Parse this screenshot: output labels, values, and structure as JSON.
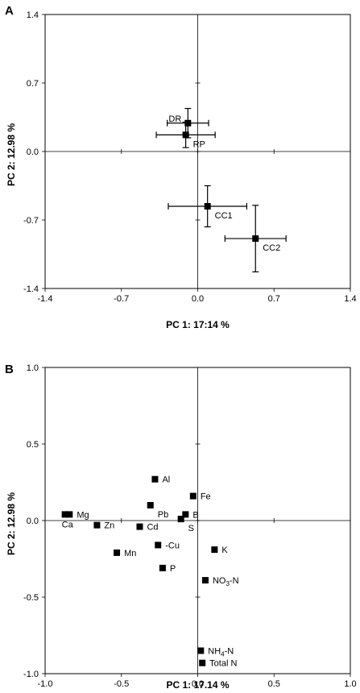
{
  "chart_data": [
    {
      "type": "scatter",
      "panel_label": "A",
      "xlabel": "PC 1: 17:14 %",
      "ylabel": "PC 2: 12.98 %",
      "xlim": [
        -1.4,
        1.4
      ],
      "ylim": [
        -1.4,
        1.4
      ],
      "xticks": [
        "-1.4",
        "-0.7",
        "0.0",
        "0.7",
        "1.4"
      ],
      "yticks": [
        "1.4",
        "0.7",
        "0.0",
        "-0.7",
        "-1.4"
      ],
      "error_bars": true,
      "points": [
        {
          "label": "DR",
          "x": -0.09,
          "y": 0.29,
          "xerr": 0.19,
          "yerr": 0.15,
          "label_pos": "left"
        },
        {
          "label": "RP",
          "x": -0.11,
          "y": 0.17,
          "xerr": 0.27,
          "yerr": 0.13,
          "label_pos": "below-right"
        },
        {
          "label": "CC1",
          "x": 0.09,
          "y": -0.56,
          "xerr": 0.36,
          "yerr": 0.21,
          "label_pos": "below-right"
        },
        {
          "label": "CC2",
          "x": 0.53,
          "y": -0.89,
          "xerr": 0.28,
          "yerr": 0.34,
          "label_pos": "below-right"
        }
      ]
    },
    {
      "type": "scatter",
      "panel_label": "B",
      "xlabel": "PC 1: 17.14 %",
      "ylabel": "PC 2: 12.98 %",
      "xlim": [
        -1.0,
        1.0
      ],
      "ylim": [
        -1.0,
        1.0
      ],
      "xticks": [
        "-1.0",
        "-0.5",
        "0.0",
        "0.5",
        "1.0"
      ],
      "yticks": [
        "1.0",
        "0.5",
        "0.0",
        "-0.5",
        "-1.0"
      ],
      "error_bars": false,
      "points": [
        {
          "label": "Al",
          "x": -0.28,
          "y": 0.27,
          "label_pos": "right"
        },
        {
          "label": "Fe",
          "x": -0.03,
          "y": 0.16,
          "label_pos": "right"
        },
        {
          "label": "Pb",
          "x": -0.31,
          "y": 0.1,
          "label_pos": "below-right"
        },
        {
          "label": "B",
          "x": -0.08,
          "y": 0.04,
          "label_pos": "right"
        },
        {
          "label": "S",
          "x": -0.11,
          "y": 0.01,
          "label_pos": "below-right"
        },
        {
          "label": "Mg",
          "x": -0.84,
          "y": 0.04,
          "label_pos": "right"
        },
        {
          "label": "Ca",
          "x": -0.87,
          "y": 0.04,
          "label_pos": "below"
        },
        {
          "label": "Zn",
          "x": -0.66,
          "y": -0.03,
          "label_pos": "right"
        },
        {
          "label": "Cd",
          "x": -0.38,
          "y": -0.04,
          "label_pos": "right"
        },
        {
          "label": "Mn",
          "x": -0.53,
          "y": -0.21,
          "label_pos": "right"
        },
        {
          "label": "-Cu",
          "x": -0.26,
          "y": -0.16,
          "label_pos": "right"
        },
        {
          "label": "K",
          "x": 0.11,
          "y": -0.19,
          "label_pos": "right"
        },
        {
          "label": "P",
          "x": -0.23,
          "y": -0.31,
          "label_pos": "right"
        },
        {
          "label": "NO3-N",
          "label_main": "NO",
          "label_sub": "3",
          "label_tail": "-N",
          "x": 0.05,
          "y": -0.39,
          "label_pos": "right"
        },
        {
          "label": "NH4-N",
          "label_main": "NH",
          "label_sub": "4",
          "label_tail": "-N",
          "x": 0.02,
          "y": -0.85,
          "label_pos": "right"
        },
        {
          "label": "Total N",
          "x": 0.03,
          "y": -0.93,
          "label_pos": "right"
        }
      ]
    }
  ]
}
